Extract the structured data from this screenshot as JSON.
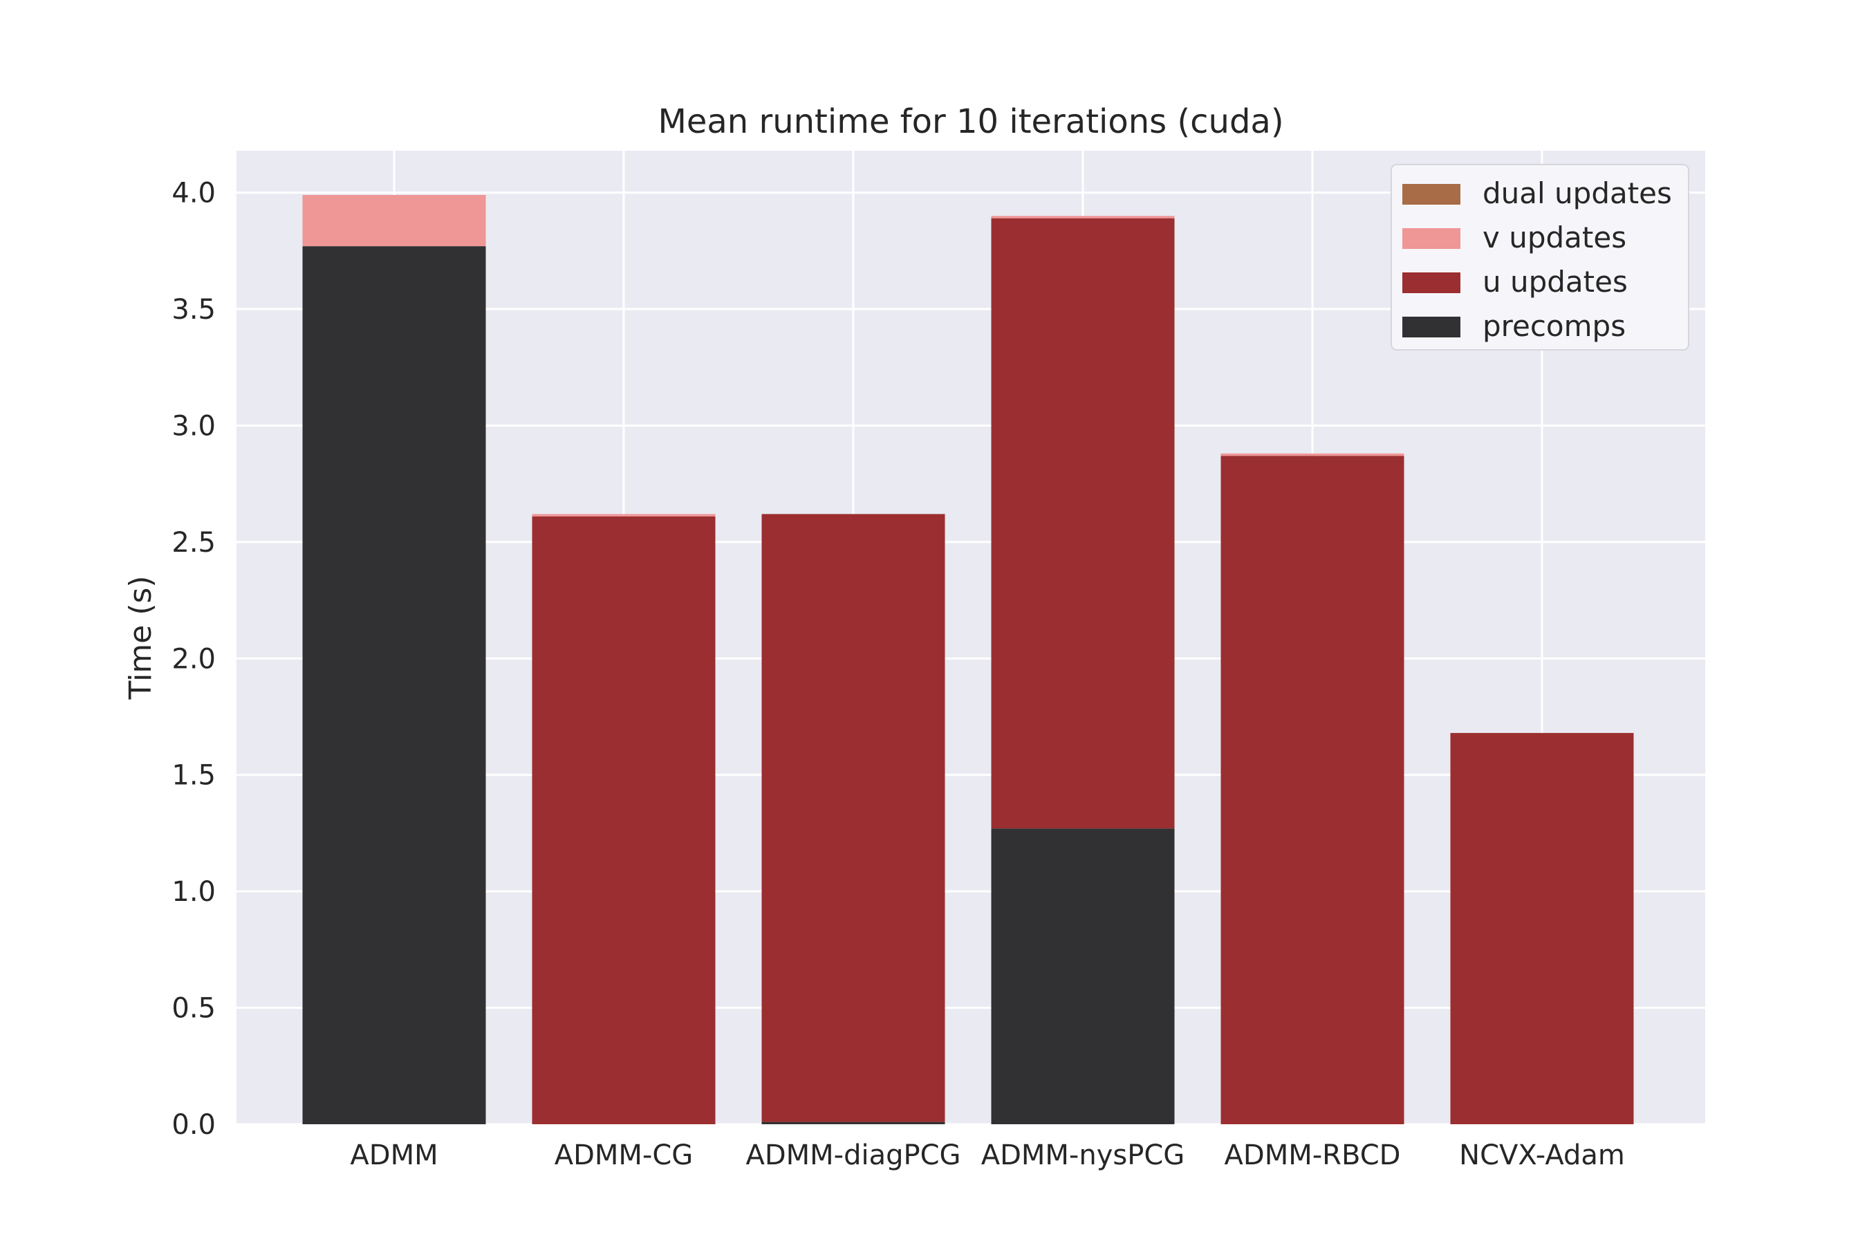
{
  "chart_data": {
    "type": "bar",
    "stacked": true,
    "title": "Mean runtime for 10 iterations (cuda)",
    "xlabel": "",
    "ylabel": "Time (s)",
    "ylim": [
      0,
      4.18
    ],
    "yticks": [
      "0.0",
      "0.5",
      "1.0",
      "1.5",
      "2.0",
      "2.5",
      "3.0",
      "3.5",
      "4.0"
    ],
    "grid": true,
    "legend_position": "top-right",
    "categories": [
      "ADMM",
      "ADMM-CG",
      "ADMM-diagPCG",
      "ADMM-nysPCG",
      "ADMM-RBCD",
      "NCVX-Adam"
    ],
    "series": [
      {
        "name": "precomps",
        "color": "#313133",
        "values": [
          3.77,
          0.0,
          0.01,
          1.27,
          0.0,
          0.0
        ]
      },
      {
        "name": "u updates",
        "color": "#9b2e30",
        "values": [
          0.0,
          2.61,
          2.61,
          2.62,
          2.87,
          1.68
        ]
      },
      {
        "name": "v updates",
        "color": "#ef9696",
        "values": [
          0.22,
          0.01,
          0.0,
          0.01,
          0.01,
          0.0
        ]
      },
      {
        "name": "dual updates",
        "color": "#a86c47",
        "values": [
          0.0,
          0.0,
          0.0,
          0.0,
          0.0,
          0.0
        ]
      }
    ],
    "legend_order": [
      "dual updates",
      "v updates",
      "u updates",
      "precomps"
    ]
  }
}
